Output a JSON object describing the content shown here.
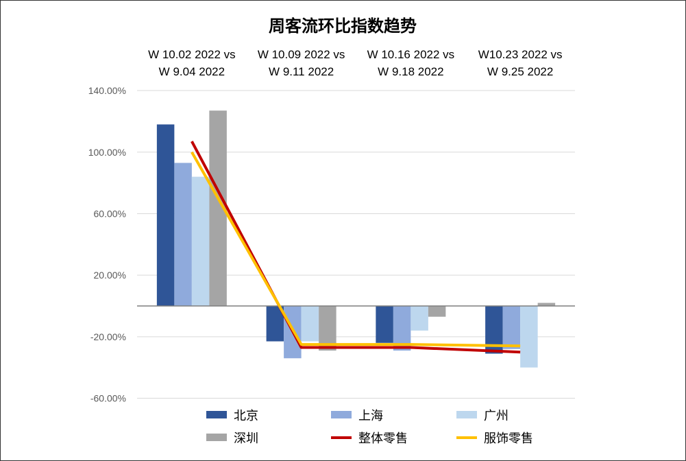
{
  "chart_data": {
    "type": "bar",
    "title": "周客流环比指数趋势",
    "categories": [
      [
        "W 10.02 2022  vs",
        "W 9.04 2022"
      ],
      [
        "W 10.09 2022  vs",
        "W 9.11 2022"
      ],
      [
        "W 10.16 2022  vs",
        "W 9.18 2022"
      ],
      [
        "W10.23 2022  vs",
        "W 9.25 2022"
      ]
    ],
    "ylim": [
      -60,
      140
    ],
    "yticks": [
      140,
      100,
      60,
      20,
      -20,
      -60
    ],
    "ytick_labels": [
      "140.00%",
      "100.00%",
      "60.00%",
      "20.00%",
      "-20.00%",
      "-60.00%"
    ],
    "grid": true,
    "legend_placement": "bottom",
    "series": [
      {
        "name": "北京",
        "kind": "bar",
        "color": "#2F5597",
        "values": [
          118,
          -23,
          -24,
          -31
        ]
      },
      {
        "name": "上海",
        "kind": "bar",
        "color": "#8FAADC",
        "values": [
          93,
          -34,
          -29,
          -28
        ]
      },
      {
        "name": "广州",
        "kind": "bar",
        "color": "#BDD7EE",
        "values": [
          84,
          -23,
          -16,
          -40
        ]
      },
      {
        "name": "深圳",
        "kind": "bar",
        "color": "#A5A5A5",
        "values": [
          127,
          -29,
          -7,
          2
        ]
      },
      {
        "name": "整体零售",
        "kind": "line",
        "color": "#C00000",
        "values": [
          107,
          -27,
          -27,
          -30
        ]
      },
      {
        "name": "服饰零售",
        "kind": "line",
        "color": "#FFC000",
        "values": [
          100,
          -25,
          -25,
          -26
        ]
      }
    ]
  }
}
